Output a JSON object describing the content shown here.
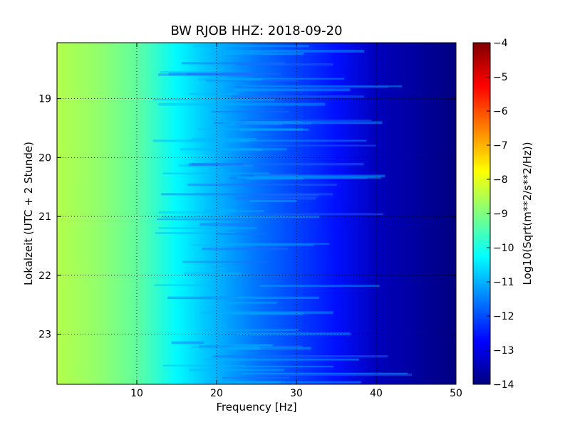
{
  "chart_data": {
    "type": "heatmap",
    "title": "BW RJOB HHZ: 2018-09-20",
    "xlabel": "Frequency [Hz]",
    "ylabel": "Lokalzeit (UTC + 2 Stunde)",
    "xlim": [
      0,
      50
    ],
    "ylim": [
      18.05,
      23.85
    ],
    "y_inverted": true,
    "x_ticks": [
      10,
      20,
      30,
      40,
      50
    ],
    "y_ticks": [
      19,
      20,
      21,
      22,
      23
    ],
    "grid": true,
    "colormap": "jet",
    "colorbar": {
      "label": "Log10(Sqrt(m**2/s**2/Hz))",
      "range": [
        -14,
        -4
      ],
      "ticks": [
        -4,
        -5,
        -6,
        -7,
        -8,
        -9,
        -10,
        -11,
        -12,
        -13,
        -14
      ]
    },
    "approx_level_profile": [
      {
        "freq": 0,
        "value": -8.5
      },
      {
        "freq": 5,
        "value": -8.8
      },
      {
        "freq": 10,
        "value": -9.3
      },
      {
        "freq": 15,
        "value": -10.3
      },
      {
        "freq": 20,
        "value": -11.0
      },
      {
        "freq": 25,
        "value": -11.6
      },
      {
        "freq": 30,
        "value": -12.1
      },
      {
        "freq": 35,
        "value": -12.6
      },
      {
        "freq": 40,
        "value": -13.4
      },
      {
        "freq": 50,
        "value": -14.0
      }
    ]
  }
}
